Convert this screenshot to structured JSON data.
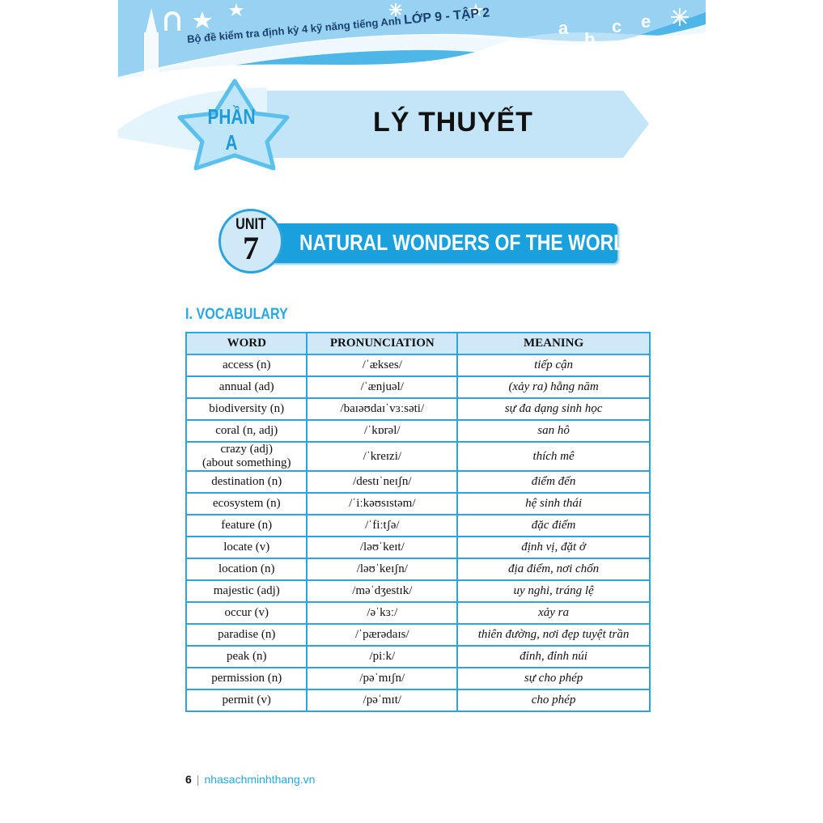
{
  "header": {
    "series_title_small": "Bộ đề kiểm tra định kỳ 4 kỹ năng tiếng Anh",
    "series_title_big": "LỚP 9 - TẬP 2",
    "decor_letters": [
      "a",
      "b",
      "c",
      "e"
    ]
  },
  "part": {
    "label_line1": "PHẦN",
    "label_line2": "A",
    "title": "LÝ THUYẾT"
  },
  "unit": {
    "label": "UNIT",
    "number": "7",
    "title": "NATURAL WONDERS OF THE WORLD"
  },
  "section": {
    "title": "I. VOCABULARY"
  },
  "table": {
    "headers": [
      "WORD",
      "PRONUNCIATION",
      "MEANING"
    ],
    "rows": [
      {
        "word": "access (n)",
        "pron": "/ˈækses/",
        "meaning": "tiếp cận"
      },
      {
        "word": "annual (ad)",
        "pron": "/ˈænjuəl/",
        "meaning": "(xảy ra) hằng năm"
      },
      {
        "word": "biodiversity (n)",
        "pron": "/baɪəʊdaɪˈvɜːsəti/",
        "meaning": "sự đa dạng sinh học"
      },
      {
        "word": "coral (n, adj)",
        "pron": "/ˈkɒrəl/",
        "meaning": "san hô"
      },
      {
        "word": "crazy (adj)\n(about something)",
        "pron": "/ˈkreɪzi/",
        "meaning": "thích mê"
      },
      {
        "word": "destination (n)",
        "pron": "/destɪˈneɪʃn/",
        "meaning": "điểm đến"
      },
      {
        "word": "ecosystem (n)",
        "pron": "/ˈiːkəʊsɪstəm/",
        "meaning": "hệ sinh thái"
      },
      {
        "word": "feature (n)",
        "pron": "/ˈfiːtʃə/",
        "meaning": "đặc điểm"
      },
      {
        "word": "locate (v)",
        "pron": "/ləʊˈkeɪt/",
        "meaning": "định vị, đặt ở"
      },
      {
        "word": "location (n)",
        "pron": "/ləʊˈkeɪʃn/",
        "meaning": "địa điểm, nơi chốn"
      },
      {
        "word": "majestic (adj)",
        "pron": "/məˈdʒestɪk/",
        "meaning": "uy nghi, tráng lệ"
      },
      {
        "word": "occur (v)",
        "pron": "/əˈkɜː/",
        "meaning": "xảy ra"
      },
      {
        "word": "paradise (n)",
        "pron": "/ˈpærədaɪs/",
        "meaning": "thiên đường, nơi đẹp tuyệt trần"
      },
      {
        "word": "peak (n)",
        "pron": "/piːk/",
        "meaning": "đỉnh, đỉnh núi"
      },
      {
        "word": "permission (n)",
        "pron": "/pəˈmɪʃn/",
        "meaning": "sự cho phép"
      },
      {
        "word": "permit (v)",
        "pron": "/pəˈmɪt/",
        "meaning": "cho phép"
      }
    ]
  },
  "footer": {
    "page_number": "6",
    "separator": "|",
    "website": "nhasachminhthang.vn"
  },
  "colors": {
    "accent": "#1aa0dc",
    "light": "#cfe9f8",
    "border": "#2ea3dc"
  }
}
